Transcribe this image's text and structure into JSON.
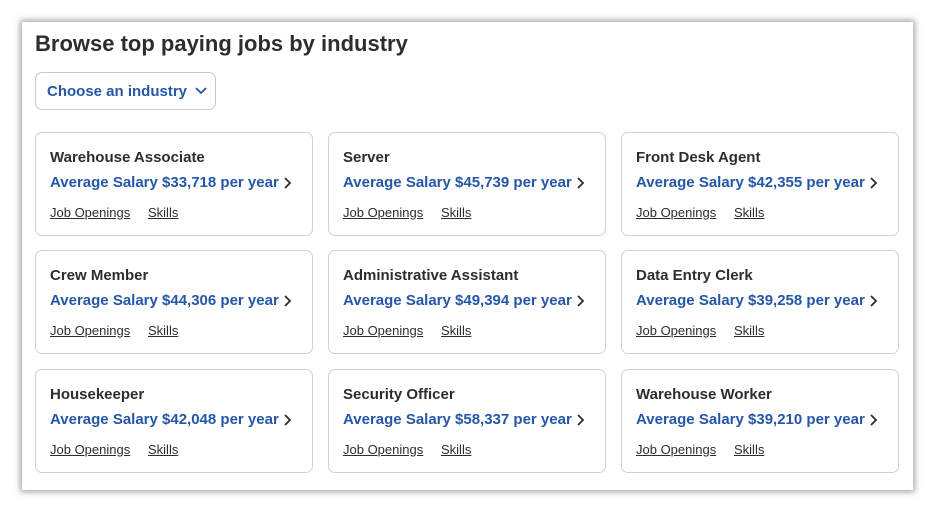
{
  "header": {
    "title": "Browse top paying jobs by industry"
  },
  "dropdown": {
    "label": "Choose an industry"
  },
  "cards": [
    {
      "title": "Warehouse Associate",
      "salary": "Average Salary $33,718 per year",
      "links": [
        "Job Openings",
        "Skills"
      ]
    },
    {
      "title": "Server",
      "salary": "Average Salary $45,739 per year",
      "links": [
        "Job Openings",
        "Skills"
      ]
    },
    {
      "title": "Front Desk Agent",
      "salary": "Average Salary $42,355 per year",
      "links": [
        "Job Openings",
        "Skills"
      ]
    },
    {
      "title": "Crew Member",
      "salary": "Average Salary $44,306 per year",
      "links": [
        "Job Openings",
        "Skills"
      ]
    },
    {
      "title": "Administrative Assistant",
      "salary": "Average Salary $49,394 per year",
      "links": [
        "Job Openings",
        "Skills"
      ]
    },
    {
      "title": "Data Entry Clerk",
      "salary": "Average Salary $39,258 per year",
      "links": [
        "Job Openings",
        "Skills"
      ]
    },
    {
      "title": "Housekeeper",
      "salary": "Average Salary $42,048 per year",
      "links": [
        "Job Openings",
        "Skills"
      ]
    },
    {
      "title": "Security Officer",
      "salary": "Average Salary $58,337 per year",
      "links": [
        "Job Openings",
        "Skills"
      ]
    },
    {
      "title": "Warehouse Worker",
      "salary": "Average Salary $39,210 per year",
      "links": [
        "Job Openings",
        "Skills"
      ]
    }
  ]
}
